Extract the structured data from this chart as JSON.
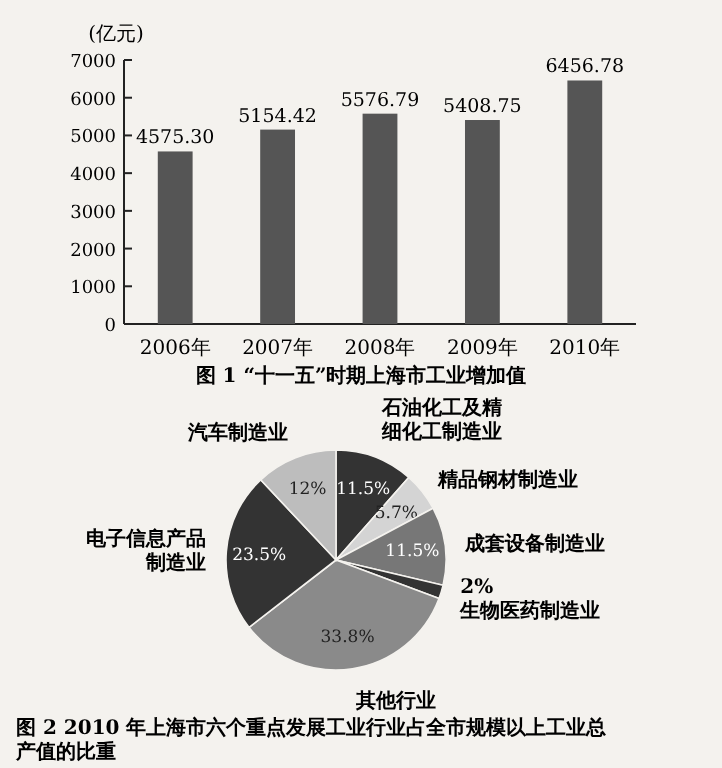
{
  "chart_data": [
    {
      "type": "bar",
      "title": "图 1 “十一五”时期上海市工业增加值",
      "ylabel": "(亿元)",
      "categories": [
        "2006年",
        "2007年",
        "2008年",
        "2009年",
        "2010年"
      ],
      "values": [
        4575.3,
        5154.42,
        5576.79,
        5408.75,
        6456.78
      ],
      "value_labels": [
        "4575.30",
        "5154.42",
        "5576.79",
        "5408.75",
        "6456.78"
      ],
      "color": "#555555",
      "ylim": [
        0,
        7000
      ],
      "yticks": [
        0,
        1000,
        2000,
        3000,
        4000,
        5000,
        6000,
        7000
      ],
      "grid": false
    },
    {
      "type": "pie",
      "title": "图 2 2010 年上海市六个重点发展工业行业占全市规模以上工业总产值的比重",
      "categories": [
        "石油化工及精细化工制造业",
        "精品钢材制造业",
        "成套设备制造业",
        "生物医药制造业",
        "其他行业",
        "电子信息产品制造业",
        "汽车制造业"
      ],
      "values": [
        11.5,
        5.7,
        11.5,
        2,
        33.8,
        23.5,
        12
      ],
      "value_labels": [
        "11.5%",
        "5.7%",
        "11.5%",
        "2%",
        "33.8%",
        "23.5%",
        "12%"
      ],
      "colors": [
        "#333333",
        "#d4d4d4",
        "#777777",
        "#333333",
        "#8a8a8a",
        "#333333",
        "#bdbdbd"
      ]
    }
  ]
}
